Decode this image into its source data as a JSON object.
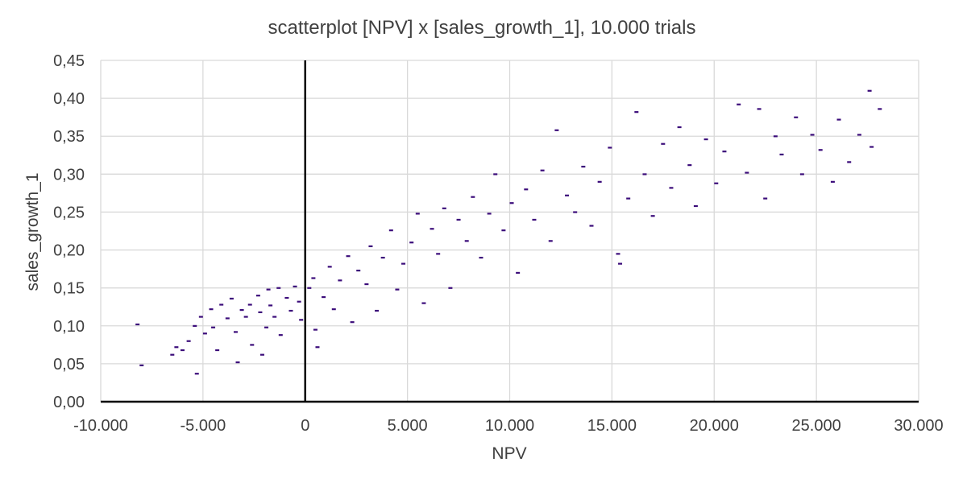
{
  "chart_data": {
    "type": "scatter",
    "title": "scatterplot [NPV] x [sales_growth_1], 10.000 trials",
    "xlabel": "NPV",
    "ylabel": "sales_growth_1",
    "xlim": [
      -10000,
      30000
    ],
    "ylim": [
      0,
      0.45
    ],
    "x_ticks": [
      -10000,
      -5000,
      0,
      5000,
      10000,
      15000,
      20000,
      25000,
      30000
    ],
    "x_tick_labels": [
      "-10.000",
      "-5.000",
      "0",
      "5.000",
      "10.000",
      "15.000",
      "20.000",
      "25.000",
      "30.000"
    ],
    "y_ticks": [
      0,
      0.05,
      0.1,
      0.15,
      0.2,
      0.25,
      0.3,
      0.35,
      0.4,
      0.45
    ],
    "y_tick_labels": [
      "0,00",
      "0,05",
      "0,10",
      "0,15",
      "0,20",
      "0,25",
      "0,30",
      "0,35",
      "0,40",
      "0,45"
    ],
    "grid": true,
    "legend": "none",
    "marker": "short horizontal dash",
    "marker_color": "#3b0c7a",
    "axis_color": "#000000",
    "grid_color": "#d9d9d9",
    "trials": 10000,
    "points": [
      [
        -8200,
        0.102
      ],
      [
        -8000,
        0.048
      ],
      [
        -6500,
        0.062
      ],
      [
        -6300,
        0.072
      ],
      [
        -6000,
        0.068
      ],
      [
        -5700,
        0.08
      ],
      [
        -5400,
        0.1
      ],
      [
        -5300,
        0.037
      ],
      [
        -5100,
        0.112
      ],
      [
        -4900,
        0.09
      ],
      [
        -4600,
        0.122
      ],
      [
        -4500,
        0.098
      ],
      [
        -4300,
        0.068
      ],
      [
        -4100,
        0.128
      ],
      [
        -3800,
        0.11
      ],
      [
        -3600,
        0.136
      ],
      [
        -3400,
        0.092
      ],
      [
        -3300,
        0.052
      ],
      [
        -3100,
        0.121
      ],
      [
        -2900,
        0.112
      ],
      [
        -2700,
        0.128
      ],
      [
        -2600,
        0.075
      ],
      [
        -2300,
        0.14
      ],
      [
        -2200,
        0.118
      ],
      [
        -2100,
        0.062
      ],
      [
        -1900,
        0.098
      ],
      [
        -1800,
        0.148
      ],
      [
        -1700,
        0.127
      ],
      [
        -1500,
        0.112
      ],
      [
        -1300,
        0.15
      ],
      [
        -1200,
        0.088
      ],
      [
        -900,
        0.137
      ],
      [
        -700,
        0.12
      ],
      [
        -500,
        0.152
      ],
      [
        -300,
        0.132
      ],
      [
        -200,
        0.108
      ],
      [
        200,
        0.15
      ],
      [
        400,
        0.163
      ],
      [
        500,
        0.095
      ],
      [
        600,
        0.072
      ],
      [
        900,
        0.138
      ],
      [
        1200,
        0.178
      ],
      [
        1400,
        0.122
      ],
      [
        1700,
        0.16
      ],
      [
        2100,
        0.192
      ],
      [
        2300,
        0.105
      ],
      [
        2600,
        0.173
      ],
      [
        3000,
        0.155
      ],
      [
        3200,
        0.205
      ],
      [
        3500,
        0.12
      ],
      [
        3800,
        0.19
      ],
      [
        4200,
        0.226
      ],
      [
        4500,
        0.148
      ],
      [
        4800,
        0.182
      ],
      [
        5200,
        0.21
      ],
      [
        5500,
        0.248
      ],
      [
        5800,
        0.13
      ],
      [
        6200,
        0.228
      ],
      [
        6500,
        0.195
      ],
      [
        6800,
        0.255
      ],
      [
        7100,
        0.15
      ],
      [
        7500,
        0.24
      ],
      [
        7900,
        0.212
      ],
      [
        8200,
        0.27
      ],
      [
        8600,
        0.19
      ],
      [
        9000,
        0.248
      ],
      [
        9300,
        0.3
      ],
      [
        9700,
        0.226
      ],
      [
        10100,
        0.262
      ],
      [
        10400,
        0.17
      ],
      [
        10800,
        0.28
      ],
      [
        11200,
        0.24
      ],
      [
        11600,
        0.305
      ],
      [
        12000,
        0.212
      ],
      [
        12300,
        0.358
      ],
      [
        12800,
        0.272
      ],
      [
        13200,
        0.25
      ],
      [
        13600,
        0.31
      ],
      [
        14000,
        0.232
      ],
      [
        14400,
        0.29
      ],
      [
        14900,
        0.335
      ],
      [
        15300,
        0.195
      ],
      [
        15400,
        0.182
      ],
      [
        15800,
        0.268
      ],
      [
        16200,
        0.382
      ],
      [
        16600,
        0.3
      ],
      [
        17000,
        0.245
      ],
      [
        17500,
        0.34
      ],
      [
        17900,
        0.282
      ],
      [
        18300,
        0.362
      ],
      [
        18800,
        0.312
      ],
      [
        19100,
        0.258
      ],
      [
        19600,
        0.346
      ],
      [
        20100,
        0.288
      ],
      [
        20500,
        0.33
      ],
      [
        21200,
        0.392
      ],
      [
        21600,
        0.302
      ],
      [
        22200,
        0.386
      ],
      [
        22500,
        0.268
      ],
      [
        23000,
        0.35
      ],
      [
        23300,
        0.326
      ],
      [
        24000,
        0.375
      ],
      [
        24300,
        0.3
      ],
      [
        24800,
        0.352
      ],
      [
        25200,
        0.332
      ],
      [
        25800,
        0.29
      ],
      [
        26100,
        0.372
      ],
      [
        26600,
        0.316
      ],
      [
        27100,
        0.352
      ],
      [
        27600,
        0.41
      ],
      [
        27700,
        0.336
      ],
      [
        28100,
        0.386
      ]
    ]
  }
}
